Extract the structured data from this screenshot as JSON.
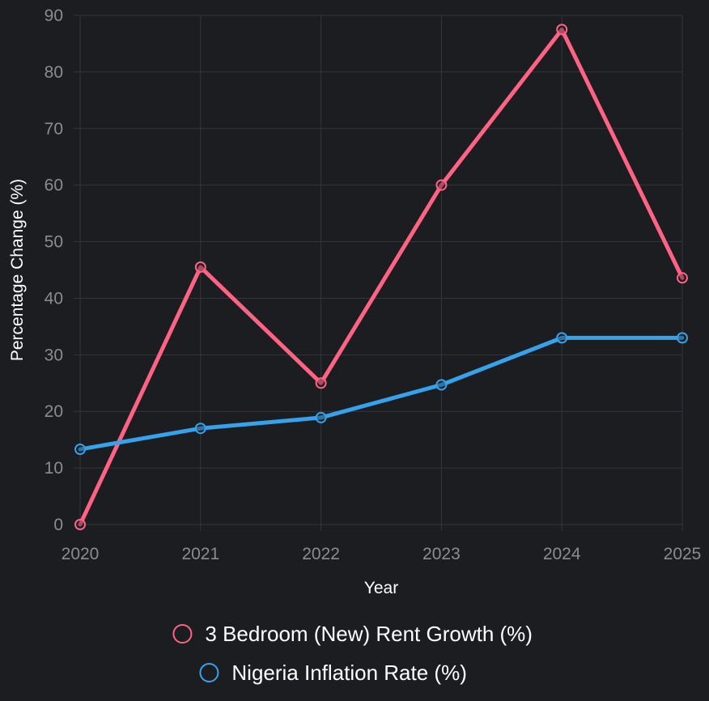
{
  "chart_data": {
    "type": "line",
    "title": "",
    "xlabel": "Year",
    "ylabel": "Percentage Change (%)",
    "categories": [
      "2020",
      "2021",
      "2022",
      "2023",
      "2024",
      "2025"
    ],
    "ylim": [
      0,
      90
    ],
    "yticks": [
      "0",
      "10",
      "20",
      "30",
      "40",
      "50",
      "60",
      "70",
      "80",
      "90"
    ],
    "grid": true,
    "legend_position": "bottom",
    "series": [
      {
        "name": "3 Bedroom (New) Rent Growth (%)",
        "color": "#ff6384",
        "values": [
          0,
          45.5,
          25,
          60,
          87.5,
          43.6
        ]
      },
      {
        "name": "Nigeria Inflation Rate (%)",
        "color": "#36a2eb",
        "values": [
          13.3,
          17,
          18.9,
          24.7,
          33,
          33
        ]
      }
    ]
  },
  "colors": {
    "background": "#1c1d21",
    "grid": "#34353a",
    "tick_label": "#8b8c90",
    "axis_title": "#ffffff"
  }
}
